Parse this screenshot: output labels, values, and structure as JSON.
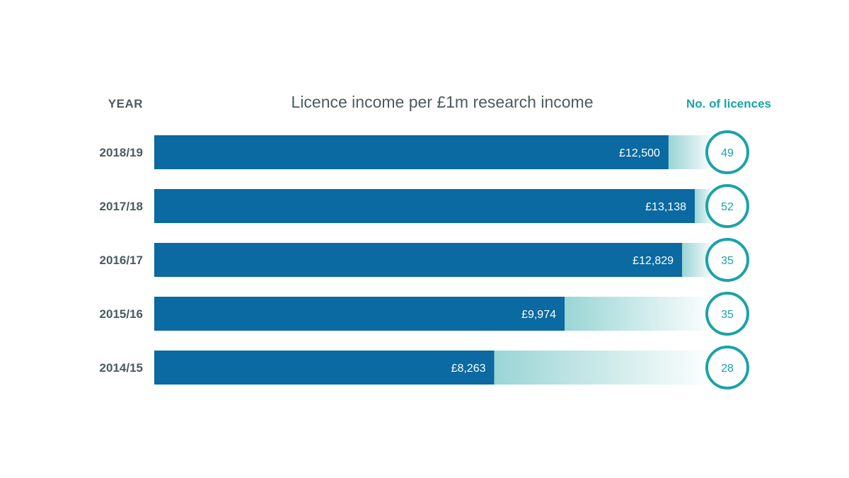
{
  "headers": {
    "year": "YEAR",
    "title": "Licence income per £1m research income",
    "count": "No. of licences"
  },
  "colors": {
    "bar": "#0a6aa1",
    "track_fade_start": "#8fd0d0",
    "circle": "#1aa3a8",
    "year_text": "#4a5b5f",
    "count_text": "#1aa3a8"
  },
  "chart_data": {
    "type": "bar",
    "orientation": "horizontal",
    "title": "Licence income per £1m research income",
    "categories": [
      "2018/19",
      "2017/18",
      "2016/17",
      "2015/16",
      "2014/15"
    ],
    "series": [
      {
        "values": [
          12500,
          13138,
          12829,
          9974,
          8263
        ],
        "labels": [
          "£12,500",
          "£13,138",
          "£12,829",
          "£9,974",
          "£8,263"
        ]
      }
    ],
    "licences": [
      49,
      52,
      35,
      35,
      28
    ],
    "xlim": [
      0,
      13138
    ],
    "grid": false
  }
}
